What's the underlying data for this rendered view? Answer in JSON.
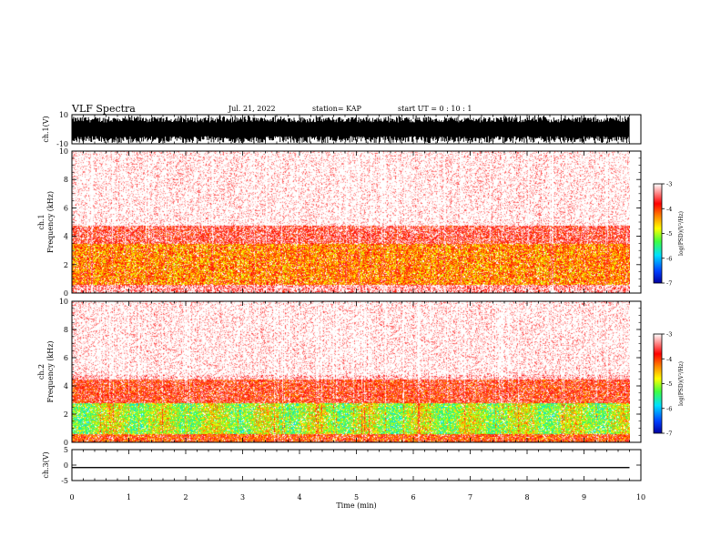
{
  "header": {
    "title": "VLF Spectra",
    "date": "Jul. 21, 2022",
    "station": "station= KAP",
    "start": "start UT =  0 : 10 : 1"
  },
  "colors": {
    "spectrogram_scale": [
      "#0000a0",
      "#0040ff",
      "#00e0ff",
      "#40ff40",
      "#ffff00",
      "#ff8000",
      "#ff0000",
      "#ffffff"
    ],
    "waveform": "#000000"
  },
  "chart_data": [
    {
      "type": "line",
      "name_label": "ch.1(V)",
      "ylabel": "ch.1(V)",
      "ylim": [
        -10,
        10
      ],
      "yticks": [
        "10",
        "-10"
      ],
      "x": [
        0,
        9.8
      ],
      "description_values": {
        "amplitude_min": -10,
        "amplitude_max": 10
      }
    },
    {
      "type": "heatmap",
      "ylabel": "ch.1\nFrequency (kHz)",
      "ylim": [
        0,
        10
      ],
      "yticks": [
        "0",
        "2",
        "4",
        "6",
        "8",
        "10"
      ],
      "xlim": [
        0,
        10
      ],
      "data_extent_min": 9.8,
      "colorbar": {
        "label": "log(PSD)(V²/Hz)",
        "range": [
          -7,
          -3
        ],
        "ticks": [
          "-3",
          "-4",
          "-5",
          "-6",
          "-7"
        ]
      },
      "bands_khz": [
        {
          "from": 0,
          "to": 0.6,
          "level": -3.3
        },
        {
          "from": 0.6,
          "to": 3.5,
          "level": -4.3
        },
        {
          "from": 3.5,
          "to": 4.8,
          "level": -3.6
        },
        {
          "from": 4.8,
          "to": 10,
          "level": -3.1
        }
      ]
    },
    {
      "type": "heatmap",
      "ylabel": "ch.2\nFrequency (kHz)",
      "ylim": [
        0,
        10
      ],
      "yticks": [
        "0",
        "2",
        "4",
        "6",
        "8",
        "10"
      ],
      "xlim": [
        0,
        10
      ],
      "data_extent_min": 9.8,
      "colorbar": {
        "label": "log(PSD)(V²/Hz)",
        "range": [
          -7,
          -3
        ],
        "ticks": [
          "-3",
          "-4",
          "-5",
          "-6",
          "-7"
        ]
      },
      "bands_khz": [
        {
          "from": 0,
          "to": 0.6,
          "level": -4.0
        },
        {
          "from": 0.6,
          "to": 2.8,
          "level": -5.0
        },
        {
          "from": 2.8,
          "to": 4.5,
          "level": -3.8
        },
        {
          "from": 4.5,
          "to": 10,
          "level": -3.1
        }
      ]
    },
    {
      "type": "line",
      "ylabel": "ch.3(V)",
      "ylim": [
        -5,
        5
      ],
      "yticks": [
        "5",
        "0",
        "-5"
      ],
      "xlabel": "Time (min)",
      "xlim": [
        0,
        10
      ],
      "xticks": [
        "0",
        "1",
        "2",
        "3",
        "4",
        "5",
        "6",
        "7",
        "8",
        "9",
        "10"
      ],
      "values_v": [
        -1.0,
        -0.6
      ]
    }
  ]
}
